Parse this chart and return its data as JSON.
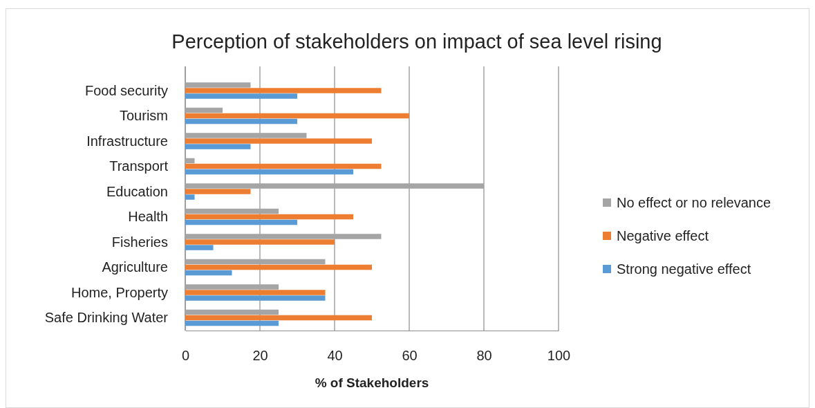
{
  "chart_data": {
    "type": "bar",
    "orientation": "horizontal",
    "title": "Perception of stakeholders on impact of sea level rising",
    "xlabel": "% of Stakeholders",
    "categories": [
      "Food security",
      "Tourism",
      "Infrastructure",
      "Transport",
      "Education",
      "Health",
      "Fisheries",
      "Agriculture",
      "Home, Property ",
      "Safe Drinking Water"
    ],
    "series": [
      {
        "name": "No effect or no relevance",
        "color": "#a5a5a5",
        "values": [
          17.5,
          10,
          32.5,
          2.5,
          80,
          25,
          52.5,
          37.5,
          25,
          25
        ]
      },
      {
        "name": "Negative effect",
        "color": "#ed7d31",
        "values": [
          52.5,
          60,
          50,
          52.5,
          17.5,
          45,
          40,
          50,
          37.5,
          50
        ]
      },
      {
        "name": "Strong negative effect",
        "color": "#5b9bd5",
        "values": [
          30,
          30,
          17.5,
          45,
          2.5,
          30,
          7.5,
          12.5,
          37.5,
          25
        ]
      }
    ],
    "xlim": [
      0,
      100
    ],
    "xticks": [
      0,
      20,
      40,
      60,
      80,
      100
    ],
    "grid": "x",
    "legend": "right"
  }
}
